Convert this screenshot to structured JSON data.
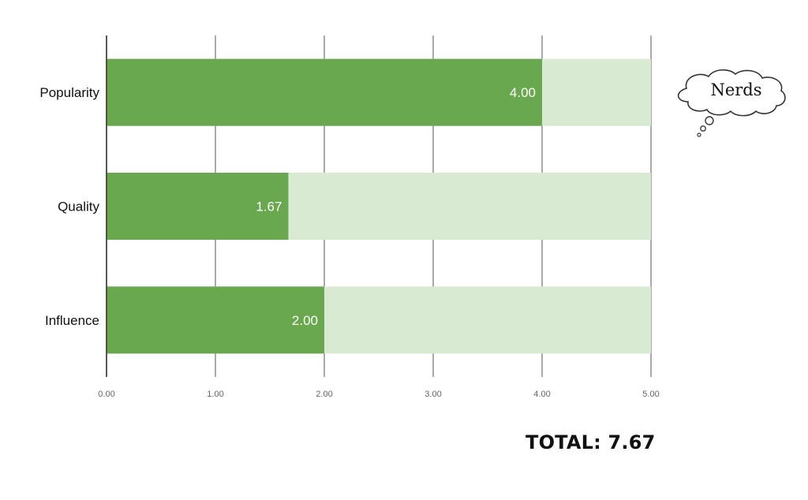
{
  "chart_data": {
    "type": "bar",
    "orientation": "horizontal",
    "stacked_background": true,
    "categories": [
      "Popularity",
      "Quality",
      "Influence"
    ],
    "values": [
      4.0,
      1.67,
      2.0
    ],
    "value_labels": [
      "4.00",
      "1.67",
      "2.00"
    ],
    "max": 5.0,
    "xlim": [
      0,
      5
    ],
    "xticks": [
      "0.00",
      "1.00",
      "2.00",
      "3.00",
      "4.00",
      "5.00"
    ],
    "grid": true,
    "bar_color": "#6aa84f",
    "remainder_color": "#d9ead3"
  },
  "total": "TOTAL: 7.67",
  "thought_bubble": "Nerds"
}
